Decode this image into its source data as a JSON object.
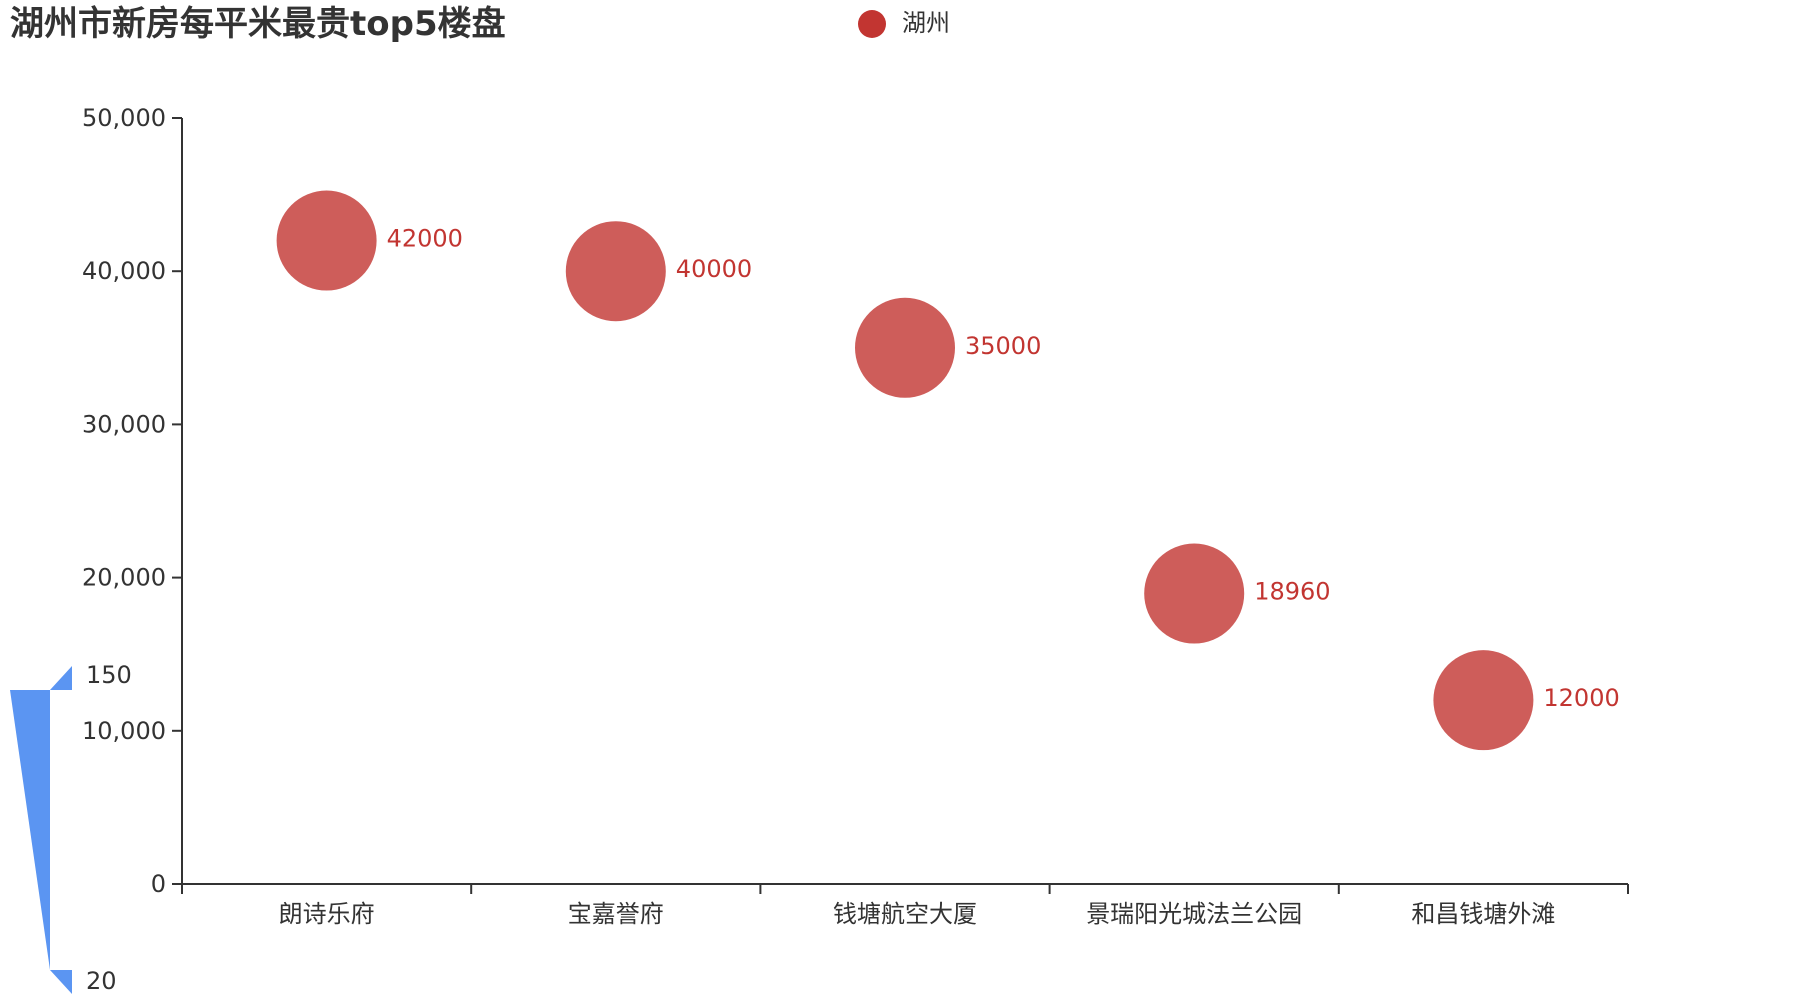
{
  "chart_data": {
    "type": "scatter",
    "title": "湖州市新房每平米最贵top5楼盘",
    "categories": [
      "朗诗乐府",
      "宝嘉誉府",
      "钱塘航空大厦",
      "景瑞阳光城法兰公园",
      "和昌钱塘外滩"
    ],
    "series": [
      {
        "name": "湖州",
        "values": [
          42000,
          40000,
          35000,
          18960,
          12000
        ],
        "data_labels": [
          "42000",
          "40000",
          "35000",
          "18960",
          "12000"
        ]
      }
    ],
    "ylim": [
      0,
      50000
    ],
    "y_ticks": [
      0,
      10000,
      20000,
      30000,
      40000,
      50000
    ],
    "y_tick_labels": [
      "0",
      "10,000",
      "20,000",
      "30,000",
      "40,000",
      "50,000"
    ],
    "xlabel": "",
    "ylabel": "",
    "grid": false,
    "legend_position": "top-center",
    "colors": {
      "series": "#c23531",
      "label": "#c23531",
      "visual_map": "#5b95f2",
      "axis": "#333333",
      "title": "#333333"
    },
    "visual_map": {
      "type": "continuous",
      "min": 20,
      "max": 150,
      "min_label": "20",
      "max_label": "150"
    }
  }
}
